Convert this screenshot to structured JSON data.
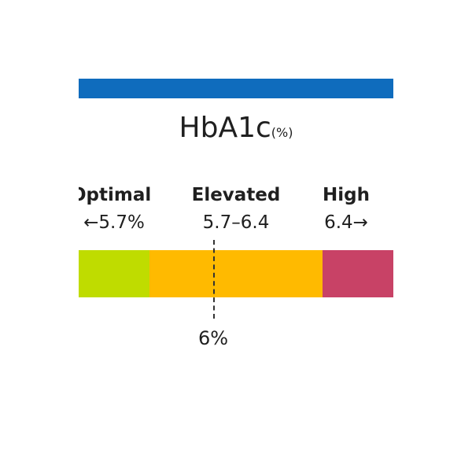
{
  "title": "HbA1c",
  "unit": "(%)",
  "ranges": [
    {
      "name": "Optimal",
      "range": "←5.7%"
    },
    {
      "name": "Elevated",
      "range": "5.7–6.4"
    },
    {
      "name": "High",
      "range": "6.4→"
    }
  ],
  "marker": {
    "label": "6%"
  }
}
